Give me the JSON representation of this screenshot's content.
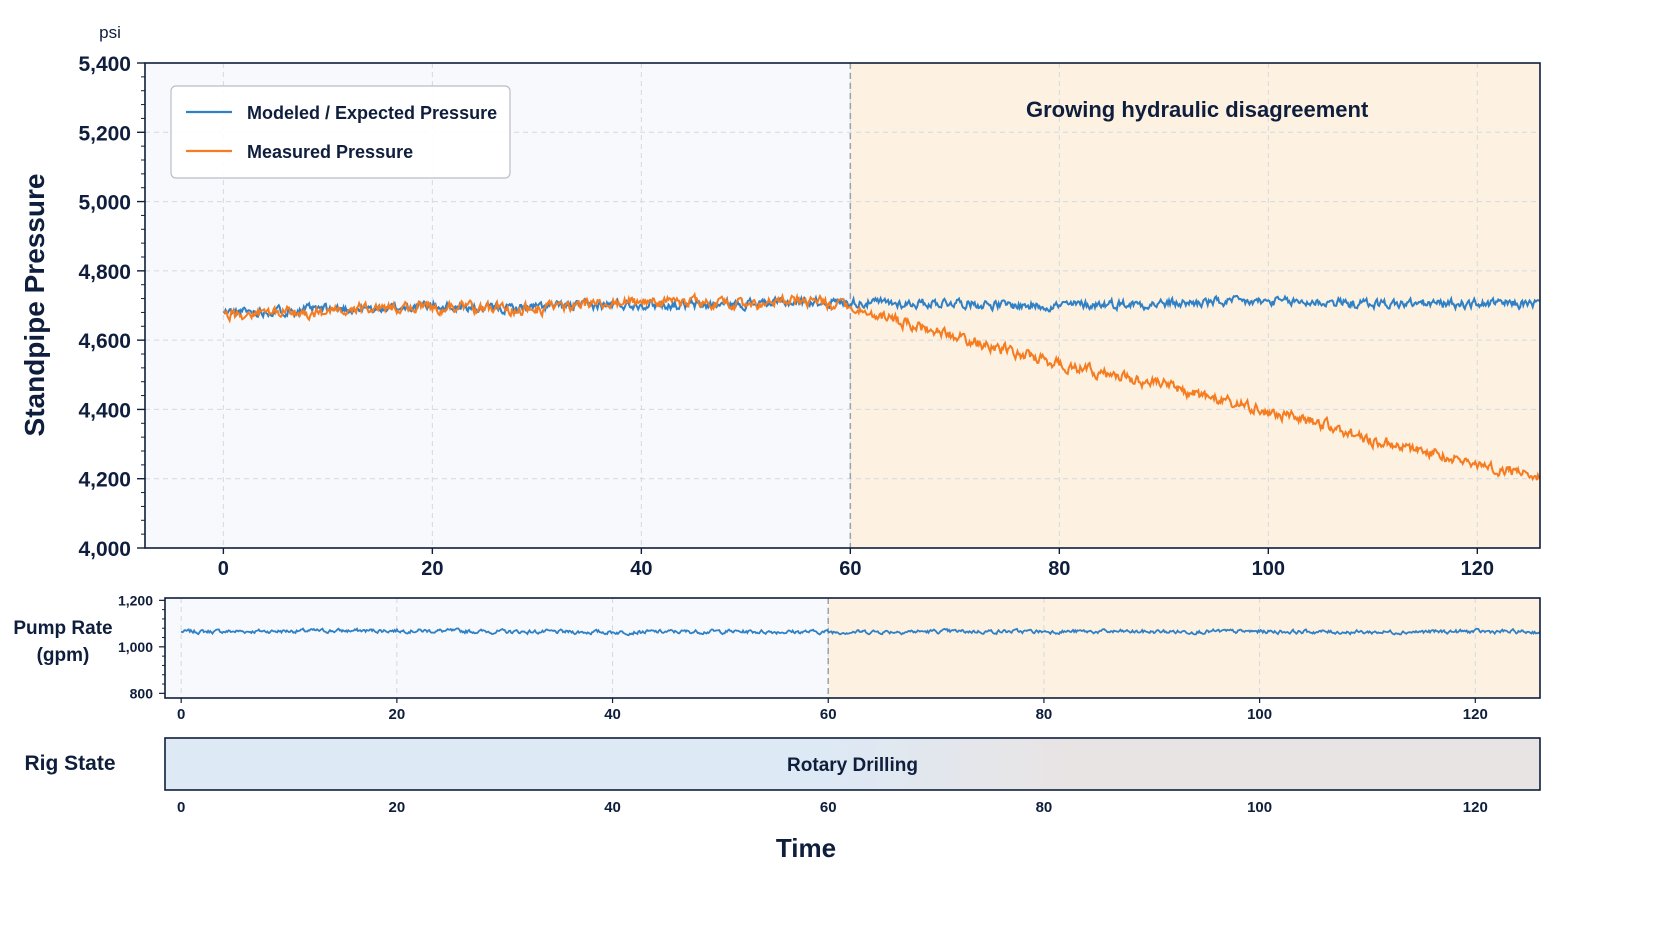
{
  "colors": {
    "modeled": "#2f80c4",
    "measured": "#f57c20",
    "axis": "#0f1e3c",
    "grid": "#d4d9e0",
    "left_region_bg": "#f7f9fc",
    "right_region_bg": "#fdf1e2",
    "rig_state_left": "#dde9f5",
    "rig_state_right": "#e9e4e4",
    "divider": "#9aa3ae"
  },
  "chart_data": [
    {
      "type": "line",
      "title": "",
      "xlabel": "",
      "ylabel": "Standpipe Pressure",
      "yunit": "psi",
      "xlim": [
        -7.5,
        126
      ],
      "ylim": [
        4000,
        5400
      ],
      "xticks": [
        0,
        20,
        40,
        60,
        80,
        100,
        120
      ],
      "xtick_labels": [
        "0",
        "20",
        "40",
        "60",
        "80",
        "100",
        "120"
      ],
      "yticks": [
        4000,
        4200,
        4400,
        4600,
        4800,
        5000,
        5200,
        5400
      ],
      "ytick_labels": [
        "4,000",
        "4,200",
        "4,400",
        "4,600",
        "4,800",
        "5,000",
        "5,200",
        "5,400"
      ],
      "grid": true,
      "legend_position": "top-left",
      "regions": [
        {
          "from": 60,
          "to": 126,
          "label": "Growing hydraulic disagreement"
        }
      ],
      "divider_x": 60,
      "x": [
        0,
        5,
        10,
        15,
        20,
        25,
        30,
        35,
        40,
        45,
        50,
        55,
        60,
        65,
        70,
        75,
        80,
        85,
        90,
        95,
        100,
        105,
        110,
        115,
        120,
        126
      ],
      "series": [
        {
          "name": "Modeled / Expected Pressure",
          "values": [
            4680,
            4685,
            4690,
            4690,
            4700,
            4690,
            4695,
            4700,
            4705,
            4700,
            4705,
            4710,
            4710,
            4705,
            4710,
            4700,
            4700,
            4705,
            4705,
            4710,
            4710,
            4710,
            4705,
            4705,
            4705,
            4705
          ]
        },
        {
          "name": "Measured Pressure",
          "values": [
            4670,
            4680,
            4680,
            4695,
            4695,
            4690,
            4690,
            4700,
            4710,
            4710,
            4700,
            4715,
            4695,
            4650,
            4610,
            4570,
            4530,
            4500,
            4470,
            4430,
            4390,
            4360,
            4310,
            4280,
            4240,
            4210
          ]
        }
      ]
    },
    {
      "type": "line",
      "title": "",
      "xlabel": "",
      "ylabel": "Pump Rate (gpm)",
      "ylabel_lines": [
        "Pump Rate",
        "(gpm)"
      ],
      "xlim": [
        -1.5,
        126
      ],
      "ylim": [
        780,
        1210
      ],
      "xticks": [
        0,
        20,
        40,
        60,
        80,
        100,
        120
      ],
      "xtick_labels": [
        "0",
        "20",
        "40",
        "60",
        "80",
        "100",
        "120"
      ],
      "yticks": [
        800,
        1000,
        1200
      ],
      "ytick_labels": [
        "800",
        "1,000",
        "1,200"
      ],
      "grid": true,
      "regions": [
        {
          "from": 60,
          "to": 126,
          "label": ""
        }
      ],
      "divider_x": 60,
      "x": [
        0,
        10,
        20,
        30,
        40,
        50,
        60,
        70,
        80,
        90,
        100,
        110,
        120,
        126
      ],
      "series": [
        {
          "name": "",
          "values": [
            1065,
            1068,
            1070,
            1065,
            1063,
            1066,
            1064,
            1066,
            1066,
            1065,
            1066,
            1063,
            1066,
            1064
          ]
        }
      ]
    },
    {
      "type": "bar",
      "title": "",
      "ylabel": "Rig State",
      "xlabel": "Time",
      "xlim": [
        -1.5,
        126
      ],
      "xticks": [
        0,
        20,
        40,
        60,
        80,
        100,
        120
      ],
      "xtick_labels": [
        "0",
        "20",
        "40",
        "60",
        "80",
        "100",
        "120"
      ],
      "states": [
        {
          "from": -1.5,
          "to": 126,
          "label": "Rotary Drilling"
        }
      ]
    }
  ]
}
